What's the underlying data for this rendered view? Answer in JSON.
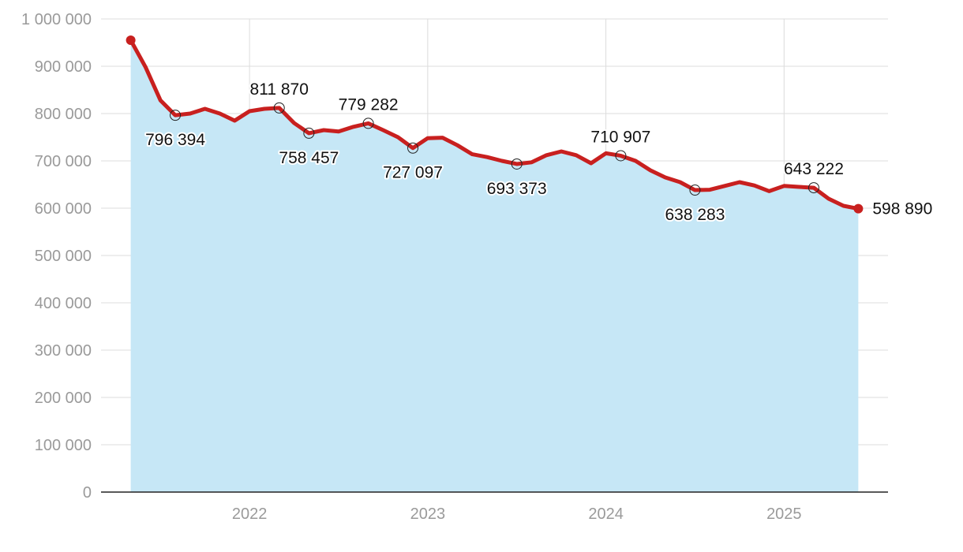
{
  "chart_data": {
    "type": "area",
    "title": "",
    "xlabel": "",
    "ylabel": "",
    "ylim": [
      0,
      1000000
    ],
    "y_ticks": [
      0,
      100000,
      200000,
      300000,
      400000,
      500000,
      600000,
      700000,
      800000,
      900000,
      1000000
    ],
    "y_tick_labels": [
      "0",
      "100 000",
      "200 000",
      "300 000",
      "400 000",
      "500 000",
      "600 000",
      "700 000",
      "800 000",
      "900 000",
      "1 000 000"
    ],
    "xlim": [
      "2021-03",
      "2025-08"
    ],
    "x_ticks": [
      "2022-01",
      "2023-01",
      "2024-01",
      "2025-01"
    ],
    "x_tick_labels": [
      "2022",
      "2023",
      "2024",
      "2025"
    ],
    "grid": true,
    "colors": {
      "line": "#c8201f",
      "area": "#c6e7f6",
      "grid": "#dcdcdc",
      "tick_text": "#9a9a9a",
      "label_text": "#111111"
    },
    "series": [
      {
        "x": [
          "2021-05",
          "2021-06",
          "2021-07",
          "2021-08",
          "2021-09",
          "2021-10",
          "2021-11",
          "2021-12",
          "2022-01",
          "2022-02",
          "2022-03",
          "2022-04",
          "2022-05",
          "2022-06",
          "2022-07",
          "2022-08",
          "2022-09",
          "2022-10",
          "2022-11",
          "2022-12",
          "2023-01",
          "2023-02",
          "2023-03",
          "2023-04",
          "2023-05",
          "2023-06",
          "2023-07",
          "2023-08",
          "2023-09",
          "2023-10",
          "2023-11",
          "2023-12",
          "2024-01",
          "2024-02",
          "2024-03",
          "2024-04",
          "2024-05",
          "2024-06",
          "2024-07",
          "2024-08",
          "2024-09",
          "2024-10",
          "2024-11",
          "2024-12",
          "2025-01",
          "2025-02",
          "2025-03",
          "2025-04",
          "2025-05",
          "2025-06"
        ],
        "values": [
          955000,
          898000,
          828000,
          796394,
          800000,
          810000,
          800000,
          785000,
          805000,
          810000,
          811870,
          780000,
          758457,
          765000,
          762000,
          772000,
          779282,
          765000,
          750000,
          727097,
          748000,
          749000,
          733000,
          714000,
          708000,
          700000,
          693373,
          697000,
          712000,
          720000,
          712000,
          695000,
          716000,
          710907,
          700000,
          680000,
          665000,
          655000,
          638283,
          639000,
          647000,
          655000,
          648000,
          636000,
          647000,
          645000,
          643222,
          620000,
          605000,
          598890
        ]
      }
    ],
    "annotations": [
      {
        "x": "2021-08",
        "value": 796394,
        "label": "796 394",
        "position": "below"
      },
      {
        "x": "2022-03",
        "value": 811870,
        "label": "811 870",
        "position": "above"
      },
      {
        "x": "2022-05",
        "value": 758457,
        "label": "758 457",
        "position": "below"
      },
      {
        "x": "2022-09",
        "value": 779282,
        "label": "779 282",
        "position": "above"
      },
      {
        "x": "2022-12",
        "value": 727097,
        "label": "727 097",
        "position": "below"
      },
      {
        "x": "2023-07",
        "value": 693373,
        "label": "693 373",
        "position": "below"
      },
      {
        "x": "2024-02",
        "value": 710907,
        "label": "710 907",
        "position": "above"
      },
      {
        "x": "2024-07",
        "value": 638283,
        "label": "638 283",
        "position": "below"
      },
      {
        "x": "2025-03",
        "value": 643222,
        "label": "643 222",
        "position": "above"
      },
      {
        "x": "2025-06",
        "value": 598890,
        "label": "598 890",
        "position": "right"
      }
    ]
  }
}
